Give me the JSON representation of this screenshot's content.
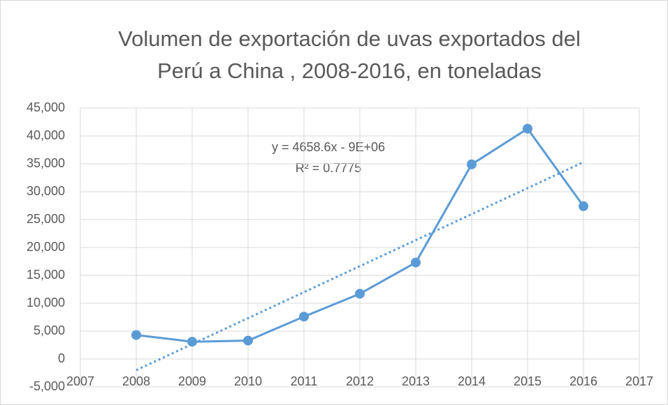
{
  "chart_data": {
    "type": "line",
    "title": [
      "Volumen de exportación de uvas  exportados del",
      "Perú a China , 2008-2016, en toneladas"
    ],
    "x": [
      2008,
      2009,
      2010,
      2011,
      2012,
      2013,
      2014,
      2015,
      2016
    ],
    "series": [
      {
        "color": "#5b9bd5",
        "values": [
          4300,
          3100,
          3300,
          7600,
          11700,
          17300,
          34900,
          41300,
          27400
        ]
      }
    ],
    "trendline": {
      "x": [
        2008,
        2016
      ],
      "values": [
        -2000,
        35300
      ],
      "color": "#5b9bd5",
      "equation": "y = 4658.6x - 9E+06",
      "r2": "R² = 0.7775"
    },
    "xlim": [
      2007,
      2017
    ],
    "xticks": [
      2007,
      2008,
      2009,
      2010,
      2011,
      2012,
      2013,
      2014,
      2015,
      2016,
      2017
    ],
    "ylim": [
      -5000,
      45000
    ],
    "yticks": [
      {
        "value": -5000,
        "label": "-5,000"
      },
      0,
      {
        "value": 5000,
        "label": "5,000"
      },
      {
        "value": 10000,
        "label": "10,000"
      },
      {
        "value": 15000,
        "label": "15,000"
      },
      {
        "value": 20000,
        "label": "20,000"
      },
      {
        "value": 25000,
        "label": "25,000"
      },
      {
        "value": 30000,
        "label": "30,000"
      },
      {
        "value": 35000,
        "label": "35,000"
      },
      {
        "value": 40000,
        "label": "40,000"
      },
      {
        "value": 45000,
        "label": "45,000"
      }
    ],
    "grid": true
  }
}
